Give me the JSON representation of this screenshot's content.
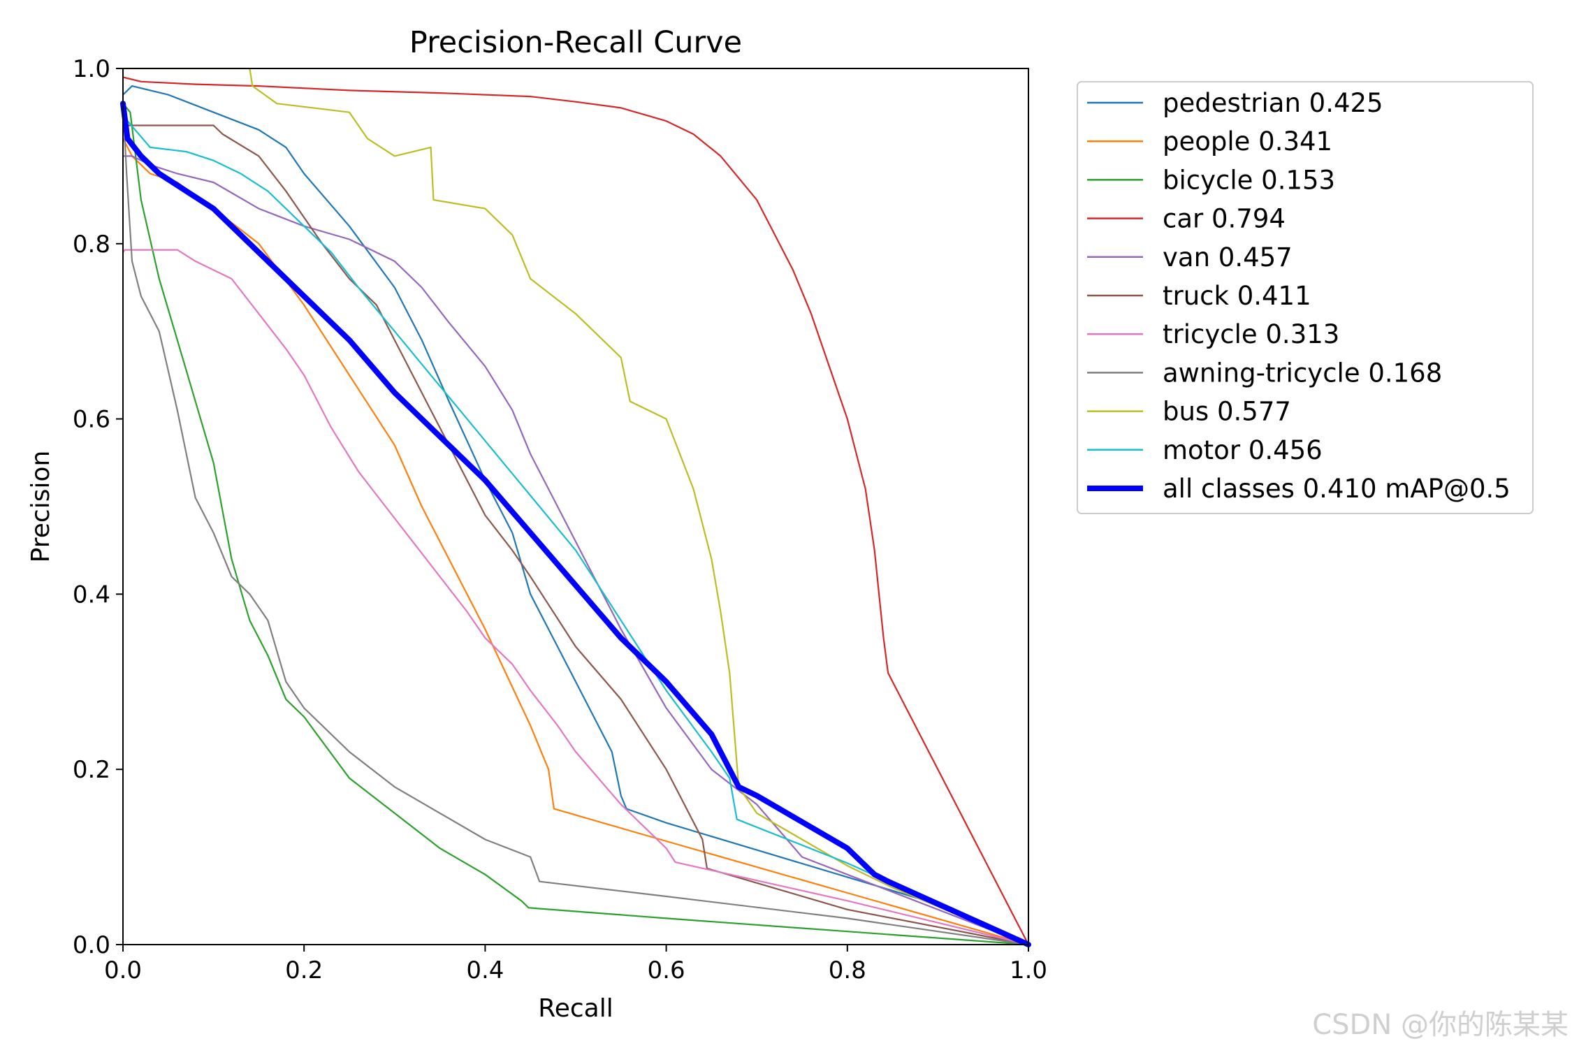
{
  "chart_data": {
    "type": "line",
    "title": "Precision-Recall Curve",
    "xlabel": "Recall",
    "ylabel": "Precision",
    "xlim": [
      0.0,
      1.0
    ],
    "ylim": [
      0.0,
      1.0
    ],
    "xticks": [
      "0.0",
      "0.2",
      "0.4",
      "0.6",
      "0.8",
      "1.0"
    ],
    "yticks": [
      "0.0",
      "0.2",
      "0.4",
      "0.6",
      "0.8",
      "1.0"
    ],
    "grid": false,
    "legend_position": "outside-right",
    "series": [
      {
        "name": "pedestrian",
        "label": "pedestrian 0.425",
        "color": "#1f77b4",
        "emphasis": false,
        "x": [
          0.0,
          0.01,
          0.05,
          0.1,
          0.15,
          0.18,
          0.2,
          0.25,
          0.3,
          0.33,
          0.36,
          0.4,
          0.43,
          0.45,
          0.5,
          0.54,
          0.55,
          0.556,
          0.6,
          0.7,
          0.8,
          0.9,
          1.0
        ],
        "y": [
          0.97,
          0.98,
          0.97,
          0.95,
          0.93,
          0.91,
          0.88,
          0.82,
          0.75,
          0.69,
          0.62,
          0.53,
          0.47,
          0.4,
          0.3,
          0.22,
          0.17,
          0.155,
          0.139,
          0.108,
          0.077,
          0.046,
          0.0
        ]
      },
      {
        "name": "people",
        "label": "people 0.341",
        "color": "#ff7f0e",
        "emphasis": false,
        "x": [
          0.0,
          0.01,
          0.03,
          0.06,
          0.1,
          0.15,
          0.2,
          0.25,
          0.3,
          0.33,
          0.36,
          0.4,
          0.45,
          0.47,
          0.476,
          0.6,
          0.8,
          1.0
        ],
        "y": [
          0.92,
          0.9,
          0.88,
          0.87,
          0.84,
          0.8,
          0.73,
          0.65,
          0.57,
          0.5,
          0.44,
          0.36,
          0.25,
          0.2,
          0.155,
          0.118,
          0.059,
          0.0
        ]
      },
      {
        "name": "bicycle",
        "label": "bicycle 0.153",
        "color": "#2ca02c",
        "emphasis": false,
        "x": [
          0.0,
          0.008,
          0.02,
          0.04,
          0.06,
          0.08,
          0.1,
          0.12,
          0.14,
          0.16,
          0.18,
          0.2,
          0.25,
          0.3,
          0.35,
          0.4,
          0.44,
          0.448,
          0.6,
          0.8,
          1.0
        ],
        "y": [
          0.96,
          0.95,
          0.85,
          0.76,
          0.69,
          0.62,
          0.55,
          0.44,
          0.37,
          0.33,
          0.28,
          0.26,
          0.19,
          0.15,
          0.11,
          0.08,
          0.05,
          0.042,
          0.03,
          0.015,
          0.0
        ]
      },
      {
        "name": "car",
        "label": "car 0.794",
        "color": "#d62728",
        "emphasis": false,
        "x": [
          0.0,
          0.02,
          0.08,
          0.15,
          0.25,
          0.35,
          0.45,
          0.5,
          0.55,
          0.6,
          0.63,
          0.66,
          0.7,
          0.74,
          0.76,
          0.78,
          0.8,
          0.82,
          0.83,
          0.84,
          0.845,
          1.0
        ],
        "y": [
          0.99,
          0.985,
          0.982,
          0.98,
          0.975,
          0.972,
          0.968,
          0.962,
          0.955,
          0.94,
          0.925,
          0.9,
          0.85,
          0.77,
          0.72,
          0.66,
          0.6,
          0.52,
          0.45,
          0.35,
          0.31,
          0.0
        ]
      },
      {
        "name": "van",
        "label": "van 0.457",
        "color": "#9467bd",
        "emphasis": false,
        "x": [
          0.0,
          0.01,
          0.03,
          0.06,
          0.1,
          0.15,
          0.2,
          0.25,
          0.3,
          0.33,
          0.36,
          0.4,
          0.43,
          0.45,
          0.5,
          0.55,
          0.6,
          0.65,
          0.7,
          0.75,
          0.8,
          1.0
        ],
        "y": [
          0.9,
          0.9,
          0.89,
          0.88,
          0.87,
          0.84,
          0.82,
          0.805,
          0.78,
          0.75,
          0.71,
          0.66,
          0.61,
          0.56,
          0.46,
          0.36,
          0.27,
          0.2,
          0.16,
          0.1,
          0.08,
          0.0
        ]
      },
      {
        "name": "truck",
        "label": "truck 0.411",
        "color": "#8c564b",
        "emphasis": false,
        "x": [
          0.0,
          0.005,
          0.1,
          0.11,
          0.15,
          0.18,
          0.2,
          0.22,
          0.25,
          0.28,
          0.3,
          0.32,
          0.34,
          0.36,
          0.38,
          0.4,
          0.43,
          0.45,
          0.5,
          0.55,
          0.6,
          0.64,
          0.645,
          0.8,
          1.0
        ],
        "y": [
          0.94,
          0.935,
          0.935,
          0.925,
          0.9,
          0.86,
          0.83,
          0.8,
          0.76,
          0.73,
          0.69,
          0.65,
          0.61,
          0.57,
          0.53,
          0.49,
          0.45,
          0.42,
          0.34,
          0.28,
          0.2,
          0.12,
          0.087,
          0.04,
          0.0
        ]
      },
      {
        "name": "tricycle",
        "label": "tricycle 0.313",
        "color": "#e377c2",
        "emphasis": false,
        "x": [
          0.0,
          0.002,
          0.06,
          0.08,
          0.12,
          0.15,
          0.18,
          0.2,
          0.23,
          0.26,
          0.29,
          0.32,
          0.35,
          0.38,
          0.4,
          0.43,
          0.45,
          0.48,
          0.5,
          0.55,
          0.6,
          0.61,
          0.8,
          1.0
        ],
        "y": [
          0.79,
          0.793,
          0.793,
          0.78,
          0.76,
          0.72,
          0.68,
          0.65,
          0.59,
          0.54,
          0.5,
          0.46,
          0.42,
          0.38,
          0.35,
          0.32,
          0.29,
          0.25,
          0.22,
          0.16,
          0.11,
          0.094,
          0.05,
          0.0
        ]
      },
      {
        "name": "awning-tricycle",
        "label": "awning-tricycle 0.168",
        "color": "#7f7f7f",
        "emphasis": false,
        "x": [
          0.0,
          0.004,
          0.01,
          0.02,
          0.03,
          0.04,
          0.06,
          0.08,
          0.1,
          0.12,
          0.14,
          0.16,
          0.18,
          0.2,
          0.25,
          0.3,
          0.35,
          0.4,
          0.45,
          0.46,
          0.6,
          0.8,
          1.0
        ],
        "y": [
          0.96,
          0.88,
          0.78,
          0.74,
          0.72,
          0.7,
          0.61,
          0.51,
          0.47,
          0.42,
          0.4,
          0.37,
          0.3,
          0.27,
          0.22,
          0.18,
          0.15,
          0.12,
          0.1,
          0.072,
          0.055,
          0.03,
          0.0
        ]
      },
      {
        "name": "bus",
        "label": "bus 0.577",
        "color": "#bcbd22",
        "emphasis": false,
        "x": [
          0.0,
          0.14,
          0.143,
          0.17,
          0.25,
          0.27,
          0.3,
          0.34,
          0.343,
          0.4,
          0.43,
          0.45,
          0.5,
          0.55,
          0.56,
          0.6,
          0.63,
          0.65,
          0.66,
          0.67,
          0.68,
          0.7,
          0.75,
          0.8,
          0.85,
          1.0
        ],
        "y": [
          1.0,
          1.0,
          0.98,
          0.96,
          0.95,
          0.92,
          0.9,
          0.91,
          0.85,
          0.84,
          0.81,
          0.76,
          0.72,
          0.67,
          0.62,
          0.6,
          0.52,
          0.44,
          0.38,
          0.31,
          0.18,
          0.15,
          0.12,
          0.09,
          0.065,
          0.0
        ]
      },
      {
        "name": "motor",
        "label": "motor 0.456",
        "color": "#17becf",
        "emphasis": false,
        "x": [
          0.0,
          0.005,
          0.03,
          0.07,
          0.1,
          0.13,
          0.16,
          0.2,
          0.23,
          0.26,
          0.3,
          0.34,
          0.38,
          0.42,
          0.46,
          0.5,
          0.55,
          0.6,
          0.65,
          0.67,
          0.678,
          0.8,
          1.0
        ],
        "y": [
          0.95,
          0.94,
          0.91,
          0.905,
          0.895,
          0.88,
          0.86,
          0.82,
          0.79,
          0.75,
          0.7,
          0.65,
          0.6,
          0.55,
          0.5,
          0.45,
          0.37,
          0.29,
          0.22,
          0.19,
          0.143,
          0.093,
          0.0
        ]
      },
      {
        "name": "all classes",
        "label": "all classes 0.410 mAP@0.5",
        "color": "#0000ff",
        "emphasis": true,
        "x": [
          0.0,
          0.005,
          0.02,
          0.04,
          0.07,
          0.1,
          0.13,
          0.16,
          0.2,
          0.25,
          0.3,
          0.35,
          0.4,
          0.45,
          0.5,
          0.55,
          0.6,
          0.65,
          0.68,
          0.7,
          0.75,
          0.8,
          0.83,
          0.845,
          1.0
        ],
        "y": [
          0.96,
          0.92,
          0.9,
          0.88,
          0.86,
          0.84,
          0.81,
          0.78,
          0.74,
          0.69,
          0.63,
          0.58,
          0.53,
          0.47,
          0.41,
          0.35,
          0.3,
          0.24,
          0.18,
          0.17,
          0.14,
          0.11,
          0.08,
          0.072,
          0.0
        ]
      }
    ]
  },
  "watermark": "CSDN @你的陈某某"
}
